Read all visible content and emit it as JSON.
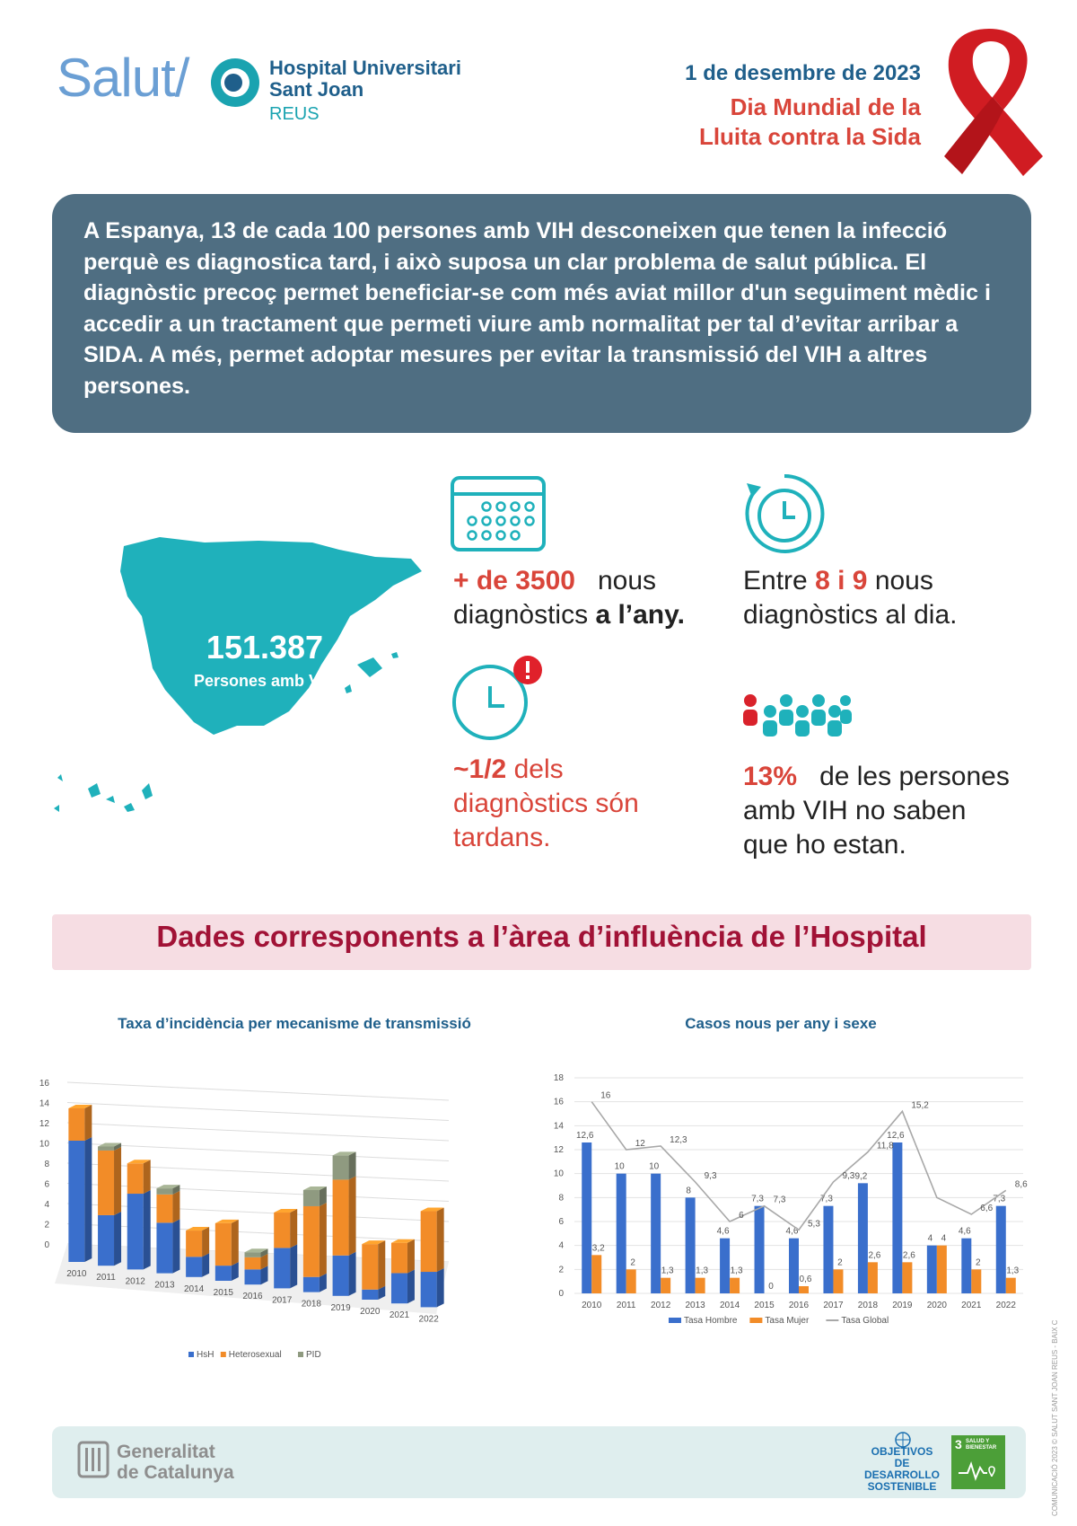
{
  "header": {
    "salut": "Salut/",
    "hospital_line1": "Hospital Universitari",
    "hospital_line2": "Sant Joan",
    "hospital_city": "REUS",
    "date": "1 de desembre de 2023",
    "day_line1": "Dia Mundial de la",
    "day_line2": "Lluita contra la Sida"
  },
  "intro": {
    "text": "A Espanya, 13 de cada 100 persones amb VIH desconeixen que tenen la infecció perquè es diagnostica tard, i això suposa un clar problema de salut pública. El diagnòstic precoç permet beneficiar-se com més aviat millor d'un seguiment mèdic i accedir a un tractament que permeti viure amb normalitat per tal d’evitar arribar a SIDA. A més, permet adoptar mesures per evitar la transmissió del VIH a altres persones."
  },
  "map": {
    "number": "151.387",
    "label": "Persones amb VIH"
  },
  "stats": {
    "annual_value": "+ de 3500",
    "annual_text1": "nous",
    "annual_text2": "diagnòstics",
    "annual_bold": "a l’any.",
    "daily_pre": "Entre",
    "daily_a": "8",
    "daily_i": "i",
    "daily_b": "9",
    "daily_text1": "nous",
    "daily_text2": "diagnòstics al dia.",
    "late_value": "~1/2",
    "late_text1": "dels",
    "late_text2": "diagnòstics són",
    "late_text3": "tardans.",
    "unaware_value": "13%",
    "unaware_text1": "de les persones",
    "unaware_text2": "amb VIH no saben",
    "unaware_text3": "que ho estan."
  },
  "banner": {
    "text": "Dades corresponents a l’àrea d’influència de l’Hospital"
  },
  "colors": {
    "blue": "#3a6fcc",
    "orange": "#f28c28",
    "gray": "#8f9a80",
    "line": "#a8a8a8"
  },
  "chart_data": [
    {
      "type": "bar",
      "title": "Taxa d’incidència per mecanisme de transmissió",
      "stacked": true,
      "three_d": true,
      "categories": [
        "2010",
        "2011",
        "2012",
        "2013",
        "2014",
        "2015",
        "2016",
        "2017",
        "2018",
        "2019",
        "2020",
        "2021",
        "2022"
      ],
      "series": [
        {
          "name": "HsH",
          "values": [
            12,
            5,
            7.5,
            5,
            2,
            1.5,
            1.5,
            4,
            1.5,
            4,
            1,
            3,
            3.5
          ]
        },
        {
          "name": "Heterosexual",
          "values": [
            3.2,
            6.4,
            3,
            2.8,
            2.6,
            4.2,
            1.2,
            3.5,
            7,
            7.5,
            4.5,
            3,
            6
          ]
        },
        {
          "name": "PID",
          "values": [
            0,
            0.4,
            0,
            0.6,
            0,
            0,
            0.5,
            0,
            1.6,
            2.4,
            0,
            0,
            0
          ]
        }
      ],
      "yticks": [
        0,
        2,
        4,
        6,
        8,
        10,
        12,
        14,
        16
      ],
      "ylim": [
        0,
        16
      ],
      "legend": "bottom"
    },
    {
      "type": "bar",
      "title": "Casos nous per any i sexe",
      "categories": [
        "2010",
        "2011",
        "2012",
        "2013",
        "2014",
        "2015",
        "2016",
        "2017",
        "2018",
        "2019",
        "2020",
        "2021",
        "2022"
      ],
      "series": [
        {
          "name": "Tasa Hombre",
          "kind": "bar",
          "values": [
            12.6,
            10,
            10,
            8,
            4.6,
            7.3,
            4.6,
            7.3,
            9.2,
            12.6,
            4,
            4.6,
            7.3
          ]
        },
        {
          "name": "Tasa Mujer",
          "kind": "bar",
          "values": [
            3.2,
            2,
            1.3,
            1.3,
            1.3,
            0,
            0.6,
            2,
            2.6,
            2.6,
            4,
            2,
            1.3
          ]
        },
        {
          "name": "Tasa Global",
          "kind": "line",
          "values": [
            16,
            12,
            12.3,
            9.3,
            6,
            7.3,
            5.3,
            9.3,
            11.8,
            15.2,
            8,
            6.6,
            8.6
          ]
        }
      ],
      "bar_labels": [
        [
          "12,6",
          "10",
          "10",
          "8",
          "4,6",
          "7,3",
          "4,6",
          "7,3",
          "9,2",
          "12,6",
          "4",
          "4,6",
          "7,3"
        ],
        [
          "3,2",
          "2",
          "1,3",
          "1,3",
          "1,3",
          "0",
          "0,6",
          "2",
          "2,6",
          "2,6",
          "4",
          "2",
          "1,3"
        ]
      ],
      "line_labels": [
        "16",
        "12",
        "12,3",
        "9,3",
        "6",
        "7,3",
        "5,3",
        "9,3",
        "11,8",
        "15,2",
        "",
        "6,6",
        "8,6"
      ],
      "yticks": [
        0,
        2,
        4,
        6,
        8,
        10,
        12,
        14,
        16,
        18
      ],
      "ylim": [
        0,
        18
      ],
      "legend": "bottom"
    }
  ],
  "footer": {
    "gen_line1": "Generalitat",
    "gen_line2": "de Catalunya",
    "ods_line1": "OBJETIVOS",
    "ods_line2": "DE DESARROLLO",
    "ods_line3": "SOSTENIBLE",
    "sdg_number": "3",
    "sdg_text": "SALUD Y BIENESTAR",
    "credit": "COMUNICACIÓ 2023 © SALUT SANT JOAN REUS - BAIX CAMP"
  }
}
